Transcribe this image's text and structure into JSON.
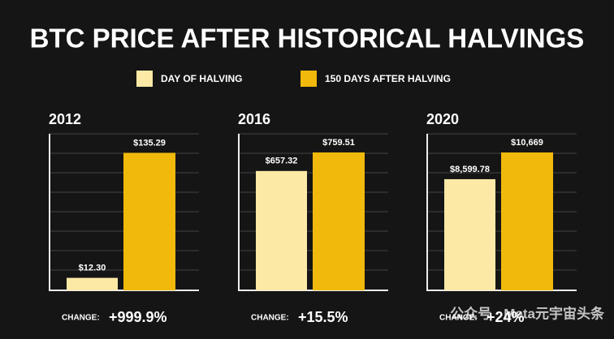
{
  "chart_data": {
    "type": "bar",
    "title": "BTC PRICE AFTER HISTORICAL HALVINGS",
    "categories": [
      "2012",
      "2016",
      "2020"
    ],
    "series": [
      {
        "name": "DAY OF HALVING",
        "color": "#fde9a6",
        "values": [
          12.3,
          657.32,
          8599.78
        ],
        "value_labels": [
          "$12.30",
          "$657.32",
          "$8,599.78"
        ]
      },
      {
        "name": "150 DAYS AFTER HALVING",
        "color": "#f0b90b",
        "values": [
          135.29,
          759.51,
          10669
        ],
        "value_labels": [
          "$135.29",
          "$759.51",
          "$10,669"
        ]
      }
    ],
    "ylims": [
      [
        0,
        154
      ],
      [
        0,
        862
      ],
      [
        0,
        12110
      ]
    ],
    "change_label": "CHANGE:",
    "changes": [
      "+999.9%",
      "+15.5%",
      "+24%"
    ],
    "watermark": "公众号 · Meta元宇宙头条"
  }
}
